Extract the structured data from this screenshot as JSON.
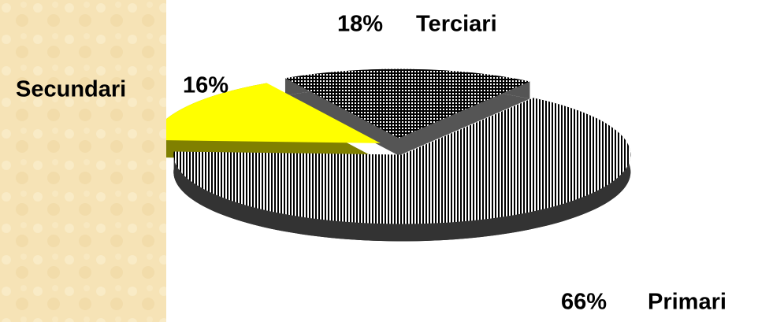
{
  "chart_data": {
    "type": "pie",
    "categories": [
      "Primari",
      "Secundari",
      "Terciari"
    ],
    "values": [
      66,
      16,
      18
    ],
    "value_labels": [
      "66%",
      "16%",
      "18%"
    ],
    "colors": [
      "#000000",
      "#ffff00",
      "#000000"
    ],
    "side_colors": [
      "#333333",
      "#808000",
      "#555555"
    ],
    "patterns": [
      "vertical",
      "solid",
      "crosshatch"
    ]
  }
}
